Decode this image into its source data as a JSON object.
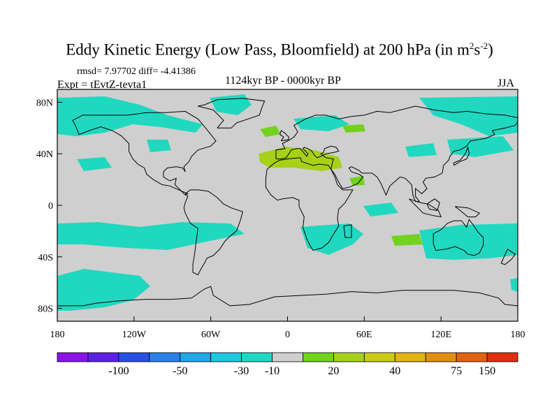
{
  "title": {
    "main": "Eddy Kinetic Energy (Low Pass, Bloomfield) at 200 hPa (in m",
    "sup1": "2",
    "mid": "s",
    "sup2": "-2",
    "end": ")"
  },
  "stats": "rmsd= 7.97702 diff= -4.41386",
  "left_label": "Expt = tEvtZ-tevta1",
  "center_label": "1124kyr BP - 0000kyr BP",
  "right_label": "JJA",
  "map": {
    "lon_range": [
      -180,
      180
    ],
    "lat_range": [
      -90,
      90
    ],
    "x_ticks": [
      "180",
      "120W",
      "60W",
      "0",
      "60E",
      "120E",
      "180"
    ],
    "y_ticks": [
      "80N",
      "40N",
      "0",
      "40S",
      "80S"
    ],
    "background_color": "#cfcfcf"
  },
  "colorbar": {
    "colors": [
      "#8a14e6",
      "#5a22e0",
      "#2a50e0",
      "#2a80e6",
      "#22a6e6",
      "#20c6e0",
      "#20d8c0",
      "#cfcfcf",
      "#72d21e",
      "#a6d01a",
      "#c8cc16",
      "#e0b414",
      "#e08e14",
      "#e06414",
      "#e02e10"
    ],
    "labels": [
      "-100",
      "-50",
      "-30",
      "-10",
      "20",
      "40",
      "75",
      "150"
    ],
    "label_boundary_index": [
      2,
      4,
      6,
      7,
      9,
      11,
      13,
      14
    ]
  }
}
